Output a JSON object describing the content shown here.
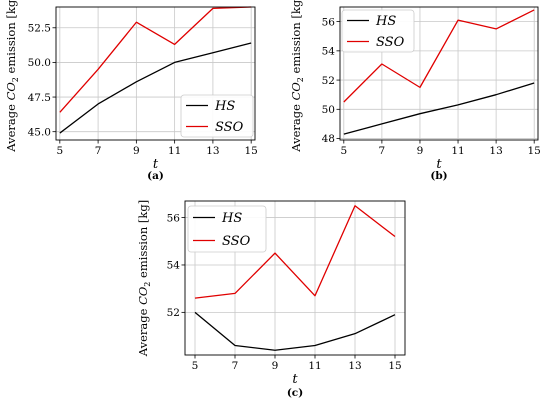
{
  "chart_data": [
    {
      "type": "line",
      "panel": "(a)",
      "caption": "(a)",
      "xlabel": "t",
      "ylabel": "Average CO2 emission [kg]",
      "x": [
        5,
        7,
        9,
        11,
        13,
        15
      ],
      "xlim": [
        4.8,
        15.2
      ],
      "ylim": [
        44.4,
        54.0
      ],
      "xticks": [
        5,
        7,
        9,
        11,
        13,
        15
      ],
      "yticks": [
        45.0,
        47.5,
        50.0,
        52.5
      ],
      "ytick_labels": [
        "45.0",
        "47.5",
        "50.0",
        "52.5"
      ],
      "grid": true,
      "legend_position": "lower-right",
      "series": [
        {
          "name": "HS",
          "color": "#000000",
          "values": [
            44.9,
            47.0,
            48.6,
            50.0,
            50.7,
            51.4
          ]
        },
        {
          "name": "SSO",
          "color": "#e00000",
          "values": [
            46.4,
            49.5,
            52.9,
            51.3,
            53.9,
            54.0
          ]
        }
      ]
    },
    {
      "type": "line",
      "panel": "(b)",
      "caption": "(b)",
      "xlabel": "t",
      "ylabel": "Average CO2 emission [kg]",
      "x": [
        5,
        7,
        9,
        11,
        13,
        15
      ],
      "xlim": [
        4.8,
        15.2
      ],
      "ylim": [
        47.9,
        57.0
      ],
      "xticks": [
        5,
        7,
        9,
        11,
        13,
        15
      ],
      "yticks": [
        48,
        50,
        52,
        54,
        56
      ],
      "ytick_labels": [
        "48",
        "50",
        "52",
        "54",
        "56"
      ],
      "grid": true,
      "legend_position": "top-left",
      "series": [
        {
          "name": "HS",
          "color": "#000000",
          "values": [
            48.3,
            49.0,
            49.7,
            50.3,
            51.0,
            51.8
          ]
        },
        {
          "name": "SSO",
          "color": "#e00000",
          "values": [
            50.5,
            53.1,
            51.5,
            56.1,
            55.5,
            56.8
          ]
        }
      ]
    },
    {
      "type": "line",
      "panel": "(c)",
      "caption": "(c)",
      "xlabel": "t",
      "ylabel": "Average CO2 emission [kg]",
      "x": [
        5,
        7,
        9,
        11,
        13,
        15
      ],
      "xlim": [
        4.5,
        15.5
      ],
      "ylim": [
        50.2,
        56.7
      ],
      "xticks": [
        5,
        7,
        9,
        11,
        13,
        15
      ],
      "yticks": [
        52,
        54,
        56
      ],
      "ytick_labels": [
        "52",
        "54",
        "56"
      ],
      "grid": true,
      "legend_position": "top-left",
      "series": [
        {
          "name": "HS",
          "color": "#000000",
          "values": [
            52.0,
            50.6,
            50.4,
            50.6,
            51.1,
            51.9
          ]
        },
        {
          "name": "SSO",
          "color": "#e00000",
          "values": [
            52.6,
            52.8,
            54.5,
            52.7,
            56.5,
            55.2
          ]
        }
      ]
    }
  ]
}
